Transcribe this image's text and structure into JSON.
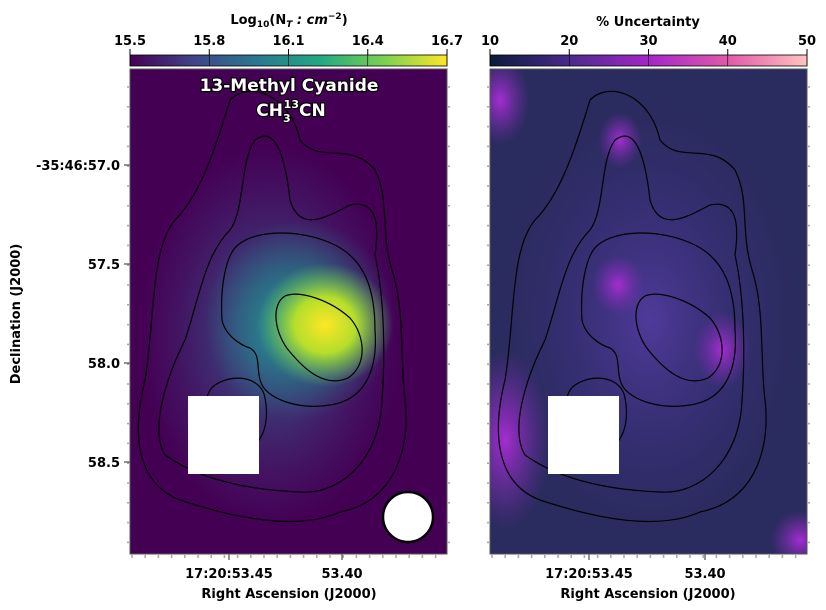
{
  "chart_data": [
    {
      "type": "heatmap",
      "panel": "left",
      "title": "13-Methyl Cyanide",
      "formula": {
        "base": "CH",
        "sub": "3",
        "sup": "13",
        "tail": "CN"
      },
      "colorbar": {
        "label_prefix": "Log",
        "label_sub": "10",
        "label_var": "(N",
        "label_var_sub": "T",
        "label_unit": " : cm",
        "label_unit_sup": "−2",
        "label_close": ")",
        "colormap": "viridis",
        "range": [
          15.5,
          16.7
        ],
        "ticks": [
          "15.5",
          "15.8",
          "16.1",
          "16.4",
          "16.7"
        ]
      },
      "xlabel": "Right Ascension (J2000)",
      "ylabel": "Declination (J2000)",
      "x_ticks": [
        "17:20:53.45",
        "53.40"
      ],
      "y_ticks": [
        "-35:46:57.0",
        "57.5",
        "58.0",
        "58.5"
      ],
      "peak_value": 16.7,
      "background_value": 15.5,
      "beam": "circle",
      "masked_region": "square"
    },
    {
      "type": "heatmap",
      "panel": "right",
      "colorbar": {
        "label": "% Uncertainty",
        "colormap": "magenta",
        "range": [
          10,
          50
        ],
        "ticks": [
          "10",
          "20",
          "30",
          "40",
          "50"
        ]
      },
      "xlabel": "Right Ascension (J2000)",
      "x_ticks": [
        "17:20:53.45",
        "53.40"
      ],
      "masked_region": "square"
    }
  ]
}
